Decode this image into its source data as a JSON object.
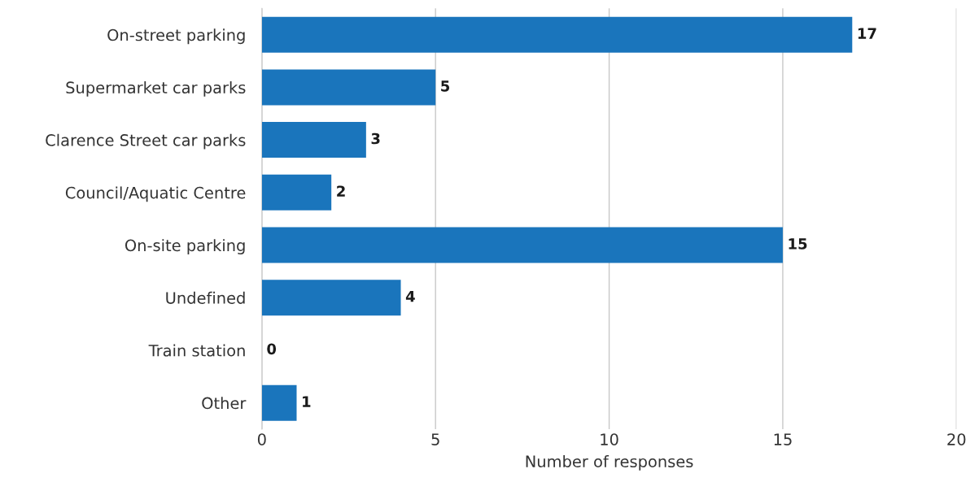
{
  "chart_data": {
    "type": "bar",
    "orientation": "horizontal",
    "categories": [
      "On-street parking",
      "Supermarket car parks",
      "Clarence Street car parks",
      "Council/Aquatic Centre",
      "On-site parking",
      "Undefined",
      "Train station",
      "Other"
    ],
    "values": [
      17,
      5,
      3,
      2,
      15,
      4,
      0,
      1
    ],
    "color": "#1a75bc",
    "xlabel": "Number of responses",
    "xlim": [
      0,
      20
    ],
    "xticks": [
      0,
      5,
      10,
      15,
      20
    ],
    "grid": "x",
    "data_labels": true
  }
}
